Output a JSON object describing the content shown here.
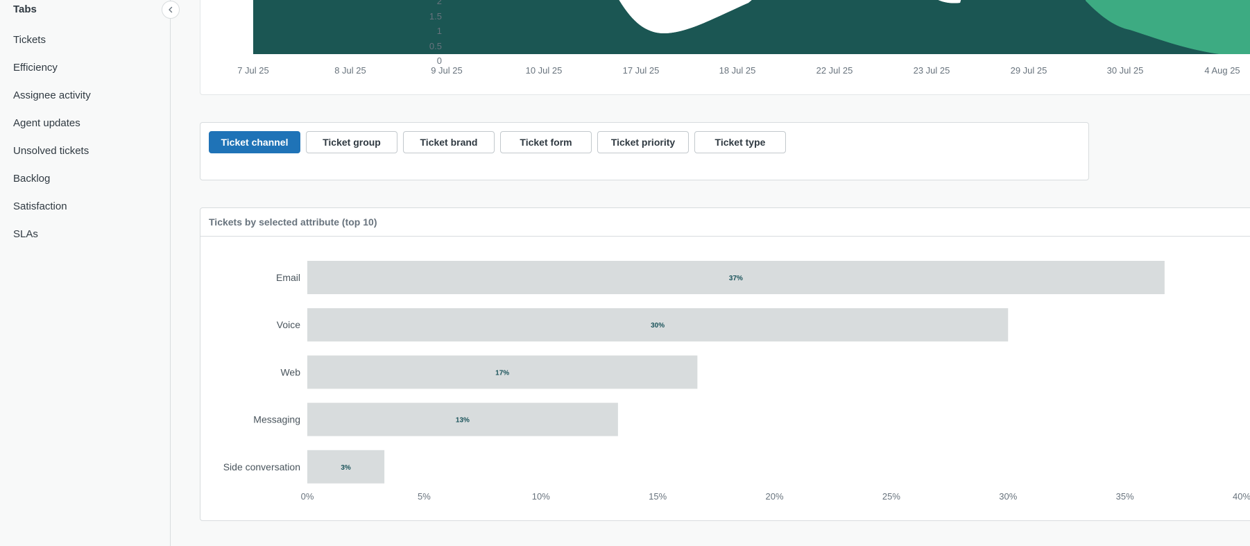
{
  "sidebar": {
    "title": "Tabs",
    "items": [
      {
        "label": "Tickets",
        "active": true
      },
      {
        "label": "Efficiency"
      },
      {
        "label": "Assignee activity"
      },
      {
        "label": "Agent updates"
      },
      {
        "label": "Unsolved tickets"
      },
      {
        "label": "Backlog"
      },
      {
        "label": "Satisfaction"
      },
      {
        "label": "SLAs"
      }
    ]
  },
  "area_chart": {
    "type": "area",
    "y_ticks": [
      "2",
      "1.5",
      "1",
      "0.5",
      "0"
    ],
    "x_ticks": [
      "7 Jul 25",
      "8 Jul 25",
      "9 Jul 25",
      "10 Jul 25",
      "17 Jul 25",
      "18 Jul 25",
      "22 Jul 25",
      "23 Jul 25",
      "29 Jul 25",
      "30 Jul 25",
      "4 Aug 25"
    ],
    "colors": {
      "dark": "#1b5653",
      "light": "#3dab82"
    }
  },
  "filters": {
    "buttons": [
      "Ticket channel",
      "Ticket group",
      "Ticket brand",
      "Ticket form",
      "Ticket priority",
      "Ticket type"
    ],
    "active": "Ticket channel"
  },
  "bar_card": {
    "title": "Tickets by selected attribute (top 10)"
  },
  "chart_data": {
    "type": "bar",
    "orientation": "horizontal",
    "categories": [
      "Email",
      "Voice",
      "Web",
      "Messaging",
      "Side conversation"
    ],
    "values": [
      36.7,
      30.0,
      16.7,
      13.3,
      3.3
    ],
    "labels": [
      "37%",
      "30%",
      "17%",
      "13%",
      "3%"
    ],
    "x_ticks": [
      "0%",
      "5%",
      "10%",
      "15%",
      "20%",
      "25%",
      "30%",
      "35%",
      "40%"
    ],
    "xlim": [
      0,
      40
    ],
    "bar_color": "#d8dcdd",
    "label_color": "#1a535a"
  }
}
